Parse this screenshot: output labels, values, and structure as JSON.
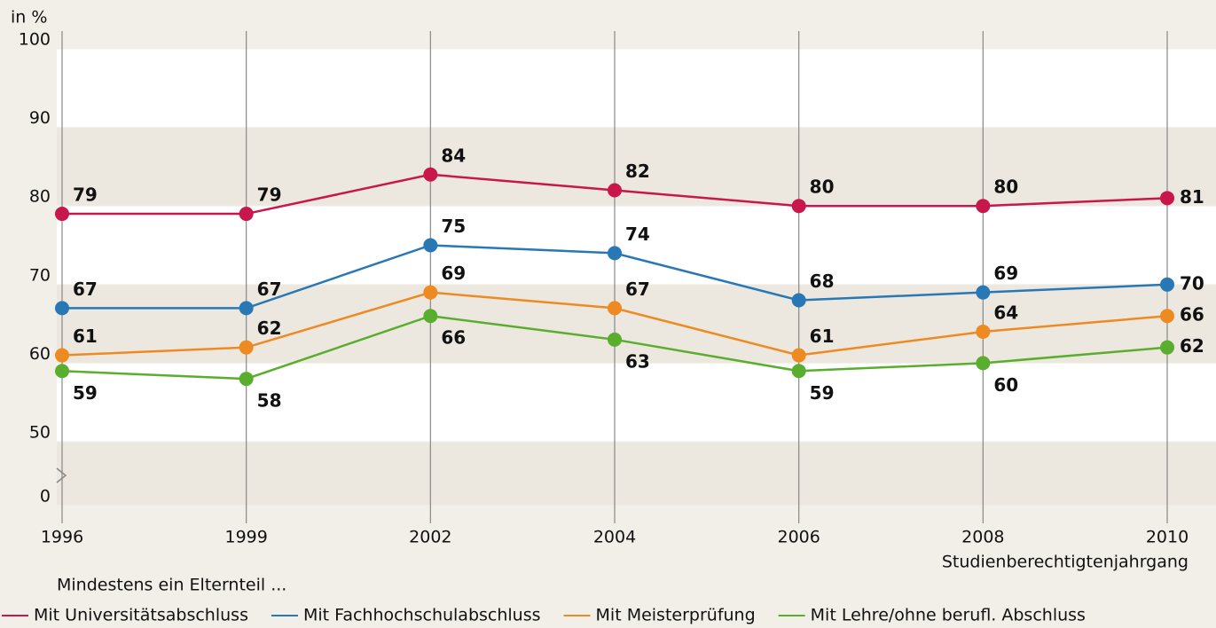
{
  "chart_data": {
    "type": "line",
    "y_label": "in %",
    "x_label": "Studienberechtigtenjahrgang",
    "legend_title": "Mindestens ein Elternteil ...",
    "categories": [
      "1996",
      "1999",
      "2002",
      "2004",
      "2006",
      "2008",
      "2010"
    ],
    "series": [
      {
        "name": "Mit Universitätsabschluss",
        "color": "#c8174b",
        "values": [
          79,
          79,
          84,
          82,
          80,
          80,
          81
        ]
      },
      {
        "name": "Mit Fachhochschulabschluss",
        "color": "#2878b5",
        "values": [
          67,
          67,
          75,
          74,
          68,
          69,
          70
        ]
      },
      {
        "name": "Mit Meisterprüfung",
        "color": "#ee8a22",
        "values": [
          61,
          62,
          69,
          67,
          61,
          64,
          66
        ]
      },
      {
        "name": "Mit Lehre/ohne berufl. Abschluss",
        "color": "#5aae2e",
        "values": [
          59,
          58,
          66,
          63,
          59,
          60,
          62
        ]
      }
    ],
    "ylim": [
      0,
      100
    ],
    "yticks": [
      0,
      50,
      60,
      70,
      80,
      90,
      100
    ],
    "y_axis_break": true,
    "grid": true
  }
}
